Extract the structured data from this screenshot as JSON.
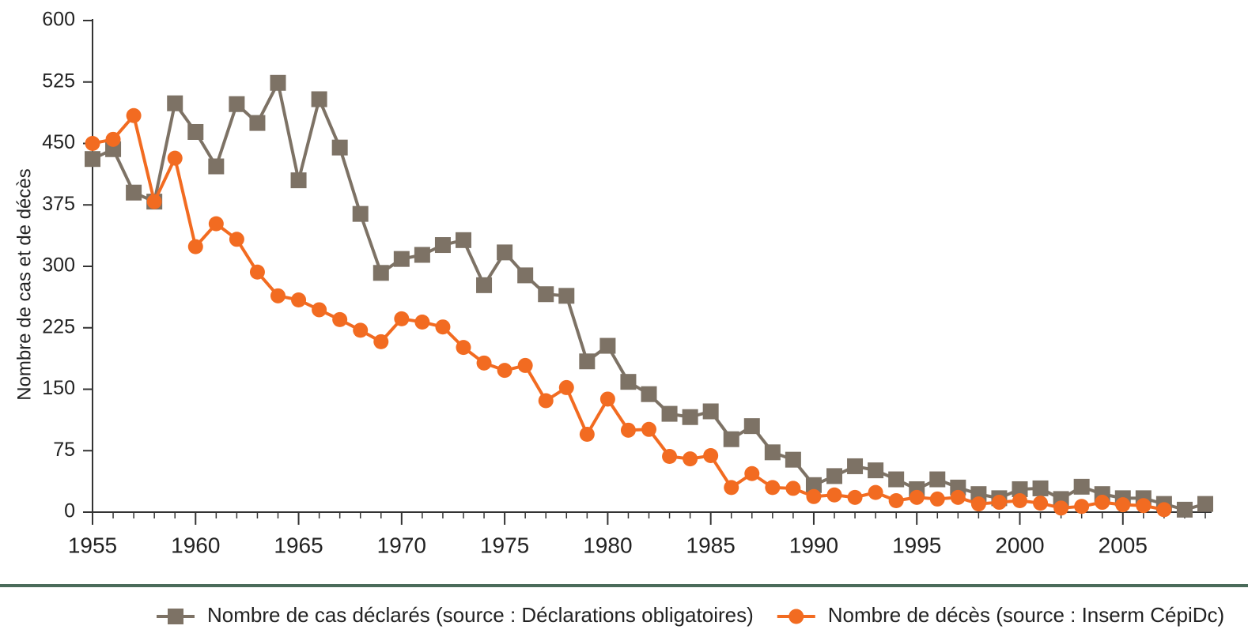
{
  "chart_data": {
    "type": "line",
    "y_label": "Nombre de cas et de décès",
    "x": [
      1955,
      1956,
      1957,
      1958,
      1959,
      1960,
      1961,
      1962,
      1963,
      1964,
      1965,
      1966,
      1967,
      1968,
      1969,
      1970,
      1971,
      1972,
      1973,
      1974,
      1975,
      1976,
      1977,
      1978,
      1979,
      1980,
      1981,
      1982,
      1983,
      1984,
      1985,
      1986,
      1987,
      1988,
      1989,
      1990,
      1991,
      1992,
      1993,
      1994,
      1995,
      1996,
      1997,
      1998,
      1999,
      2000,
      2001,
      2002,
      2003,
      2004,
      2005,
      2006,
      2007,
      2008,
      2009
    ],
    "series": [
      {
        "name": "Nombre de cas déclarés (source : Déclarations obligatoires)",
        "color": "#7d7265",
        "marker": "square",
        "values": [
          431,
          443,
          390,
          379,
          499,
          464,
          422,
          498,
          475,
          524,
          405,
          504,
          445,
          364,
          292,
          309,
          314,
          326,
          332,
          277,
          317,
          289,
          266,
          264,
          184,
          203,
          159,
          144,
          120,
          116,
          123,
          89,
          105,
          73,
          64,
          33,
          44,
          56,
          51,
          40,
          28,
          40,
          30,
          22,
          17,
          28,
          29,
          16,
          31,
          22,
          17,
          17,
          10,
          3,
          10
        ]
      },
      {
        "name": "Nombre de décès (source : Inserm CépiDc)",
        "color": "#f26b21",
        "marker": "circle",
        "values": [
          450,
          455,
          484,
          379,
          432,
          324,
          352,
          333,
          293,
          264,
          259,
          247,
          235,
          222,
          208,
          236,
          232,
          226,
          201,
          182,
          173,
          179,
          136,
          152,
          95,
          138,
          100,
          101,
          68,
          65,
          69,
          30,
          47,
          30,
          29,
          19,
          21,
          18,
          24,
          14,
          18,
          16,
          18,
          10,
          12,
          14,
          11,
          5,
          7,
          12,
          9,
          8,
          3,
          null,
          null
        ]
      }
    ],
    "xlim": [
      1955,
      2009
    ],
    "xticks": [
      1955,
      1960,
      1965,
      1970,
      1975,
      1980,
      1985,
      1990,
      1995,
      2000,
      2005
    ],
    "ylim": [
      0,
      600
    ],
    "yticks": [
      0,
      75,
      150,
      225,
      300,
      375,
      450,
      525,
      600
    ],
    "legend": "bottom"
  }
}
